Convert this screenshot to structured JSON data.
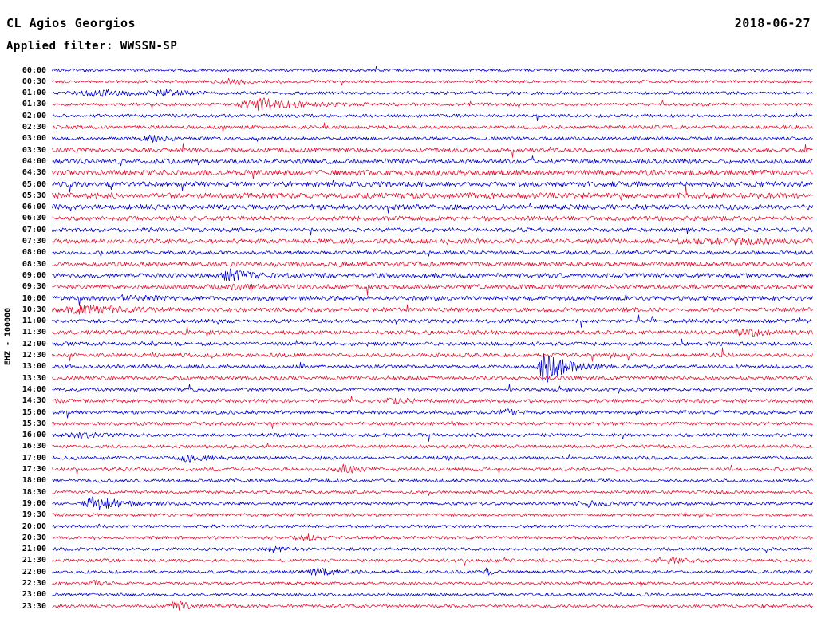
{
  "header": {
    "station": "CL Agios Georgios",
    "filter": "Applied filter: WWSSN-SP",
    "date": "2018-06-27"
  },
  "axis": {
    "scale_label": "EHZ - 100000"
  },
  "chart_data": {
    "type": "seismogram-helicorder",
    "title": "CL Agios Georgios",
    "date": "2018-06-27",
    "channel": "EHZ",
    "scale": "100000",
    "filter": "WWSSN-SP",
    "line_duration_minutes": 30,
    "x_axis": {
      "start": "00:00",
      "end": "23:30"
    },
    "palette": {
      "blue": "#0808cc",
      "red": "#e31837"
    },
    "rows": [
      {
        "label": "00:00",
        "color": "blue",
        "amp": 1.6
      },
      {
        "label": "00:30",
        "color": "red",
        "amp": 1.7
      },
      {
        "label": "01:00",
        "color": "blue",
        "amp": 1.8
      },
      {
        "label": "01:30",
        "color": "red",
        "amp": 1.8
      },
      {
        "label": "02:00",
        "color": "blue",
        "amp": 1.9
      },
      {
        "label": "02:30",
        "color": "red",
        "amp": 2.0
      },
      {
        "label": "03:00",
        "color": "blue",
        "amp": 1.9
      },
      {
        "label": "03:30",
        "color": "red",
        "amp": 2.4
      },
      {
        "label": "04:00",
        "color": "blue",
        "amp": 2.8
      },
      {
        "label": "04:30",
        "color": "red",
        "amp": 3.2
      },
      {
        "label": "05:00",
        "color": "blue",
        "amp": 3.0
      },
      {
        "label": "05:30",
        "color": "red",
        "amp": 3.2
      },
      {
        "label": "06:00",
        "color": "blue",
        "amp": 3.0
      },
      {
        "label": "06:30",
        "color": "red",
        "amp": 2.6
      },
      {
        "label": "07:00",
        "color": "blue",
        "amp": 2.4
      },
      {
        "label": "07:30",
        "color": "red",
        "amp": 2.6
      },
      {
        "label": "08:00",
        "color": "blue",
        "amp": 2.2
      },
      {
        "label": "08:30",
        "color": "red",
        "amp": 2.8
      },
      {
        "label": "09:00",
        "color": "blue",
        "amp": 2.6
      },
      {
        "label": "09:30",
        "color": "red",
        "amp": 2.6
      },
      {
        "label": "10:00",
        "color": "blue",
        "amp": 2.6
      },
      {
        "label": "10:30",
        "color": "red",
        "amp": 2.4
      },
      {
        "label": "11:00",
        "color": "blue",
        "amp": 2.2
      },
      {
        "label": "11:30",
        "color": "red",
        "amp": 2.4
      },
      {
        "label": "12:00",
        "color": "blue",
        "amp": 2.2
      },
      {
        "label": "12:30",
        "color": "red",
        "amp": 2.2
      },
      {
        "label": "13:00",
        "color": "blue",
        "amp": 2.2
      },
      {
        "label": "13:30",
        "color": "red",
        "amp": 2.2
      },
      {
        "label": "14:00",
        "color": "blue",
        "amp": 2.0
      },
      {
        "label": "14:30",
        "color": "red",
        "amp": 2.2
      },
      {
        "label": "15:00",
        "color": "blue",
        "amp": 2.2
      },
      {
        "label": "15:30",
        "color": "red",
        "amp": 2.0
      },
      {
        "label": "16:00",
        "color": "blue",
        "amp": 2.0
      },
      {
        "label": "16:30",
        "color": "red",
        "amp": 1.9
      },
      {
        "label": "17:00",
        "color": "blue",
        "amp": 2.0
      },
      {
        "label": "17:30",
        "color": "red",
        "amp": 2.0
      },
      {
        "label": "18:00",
        "color": "blue",
        "amp": 1.9
      },
      {
        "label": "18:30",
        "color": "red",
        "amp": 1.8
      },
      {
        "label": "19:00",
        "color": "blue",
        "amp": 1.9
      },
      {
        "label": "19:30",
        "color": "red",
        "amp": 1.8
      },
      {
        "label": "20:00",
        "color": "blue",
        "amp": 1.8
      },
      {
        "label": "20:30",
        "color": "red",
        "amp": 1.8
      },
      {
        "label": "21:00",
        "color": "blue",
        "amp": 1.8
      },
      {
        "label": "21:30",
        "color": "red",
        "amp": 1.8
      },
      {
        "label": "22:00",
        "color": "blue",
        "amp": 1.8
      },
      {
        "label": "22:30",
        "color": "red",
        "amp": 1.7
      },
      {
        "label": "23:00",
        "color": "blue",
        "amp": 1.7
      },
      {
        "label": "23:30",
        "color": "red",
        "amp": 1.7
      }
    ],
    "events": [
      {
        "row": 1,
        "x": 0.236,
        "amp": 2.5,
        "width": 10,
        "decay": 20
      },
      {
        "row": 2,
        "x": 0.063,
        "amp": 3.5,
        "width": 16,
        "decay": 60
      },
      {
        "row": 2,
        "x": 0.148,
        "amp": 3.0,
        "width": 7,
        "decay": 18
      },
      {
        "row": 3,
        "x": 0.265,
        "amp": 8.5,
        "width": 9,
        "decay": 45
      },
      {
        "row": 6,
        "x": 0.129,
        "amp": 4.5,
        "width": 6,
        "decay": 12
      },
      {
        "row": 15,
        "x": 0.9,
        "amp": 2.0,
        "width": 50,
        "decay": 80
      },
      {
        "row": 18,
        "x": 0.234,
        "amp": 6.0,
        "width": 8,
        "decay": 22
      },
      {
        "row": 19,
        "x": 0.24,
        "amp": 2.0,
        "width": 18,
        "decay": 30
      },
      {
        "row": 20,
        "x": 0.1,
        "amp": 2.2,
        "width": 14,
        "decay": 25
      },
      {
        "row": 21,
        "x": 0.047,
        "amp": 4.5,
        "width": 18,
        "decay": 45
      },
      {
        "row": 23,
        "x": 0.92,
        "amp": 2.8,
        "width": 14,
        "decay": 25
      },
      {
        "row": 26,
        "x": 0.645,
        "amp": 24,
        "width": 3,
        "decay": 22
      },
      {
        "row": 29,
        "x": 0.455,
        "amp": 2.0,
        "width": 14,
        "decay": 20
      },
      {
        "row": 30,
        "x": 0.6,
        "amp": 2.4,
        "width": 12,
        "decay": 20
      },
      {
        "row": 32,
        "x": 0.037,
        "amp": 3.0,
        "width": 11,
        "decay": 22
      },
      {
        "row": 34,
        "x": 0.18,
        "amp": 3.0,
        "width": 10,
        "decay": 20
      },
      {
        "row": 35,
        "x": 0.39,
        "amp": 3.0,
        "width": 10,
        "decay": 20
      },
      {
        "row": 38,
        "x": 0.056,
        "amp": 8.0,
        "width": 9,
        "decay": 32
      },
      {
        "row": 38,
        "x": 0.708,
        "amp": 3.5,
        "width": 11,
        "decay": 20
      },
      {
        "row": 41,
        "x": 0.336,
        "amp": 3.5,
        "width": 9,
        "decay": 16
      },
      {
        "row": 42,
        "x": 0.294,
        "amp": 3.0,
        "width": 8,
        "decay": 14
      },
      {
        "row": 43,
        "x": 0.811,
        "amp": 3.5,
        "width": 11,
        "decay": 22
      },
      {
        "row": 44,
        "x": 0.349,
        "amp": 4.5,
        "width": 7,
        "decay": 18
      },
      {
        "row": 44,
        "x": 0.572,
        "amp": 5.0,
        "width": 2,
        "decay": 4
      },
      {
        "row": 45,
        "x": 0.058,
        "amp": 2.3,
        "width": 9,
        "decay": 15
      },
      {
        "row": 47,
        "x": 0.165,
        "amp": 6.0,
        "width": 7,
        "decay": 16
      }
    ]
  }
}
